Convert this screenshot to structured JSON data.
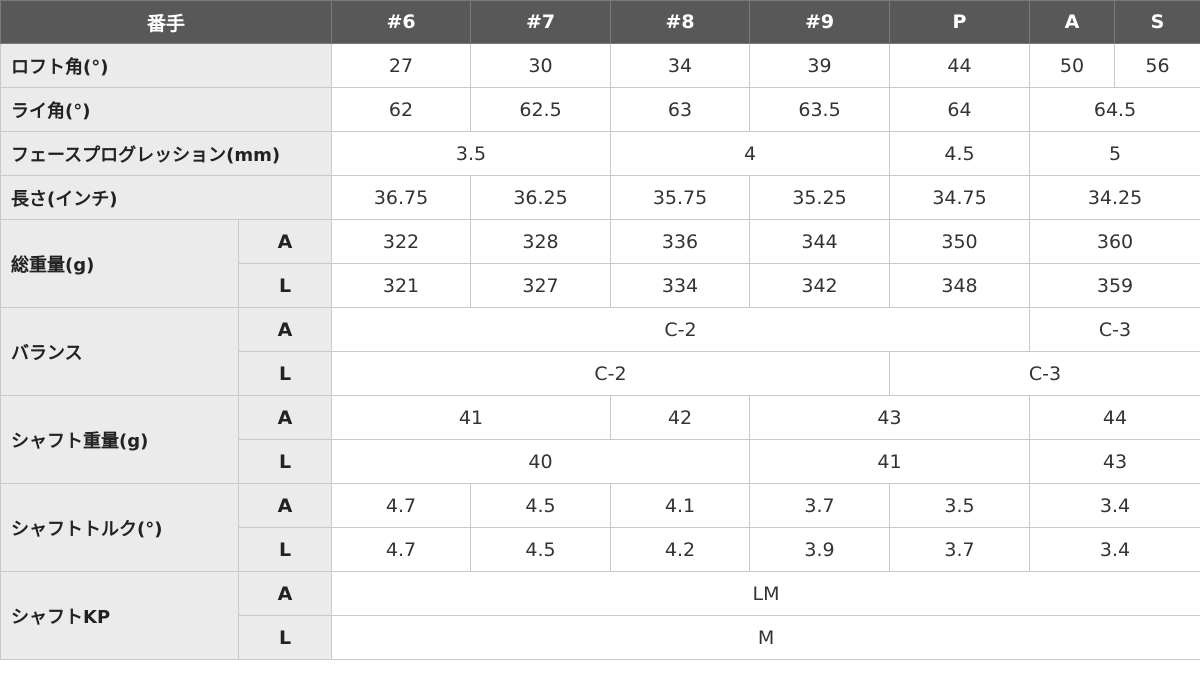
{
  "table": {
    "header": [
      "番手",
      "#6",
      "#7",
      "#8",
      "#9",
      "P",
      "A",
      "S"
    ],
    "rows": [
      {
        "label": "ロフト角(°)",
        "cells": [
          "27",
          "30",
          "34",
          "39",
          "44",
          "50",
          "56"
        ]
      },
      {
        "label": "ライ角(°)",
        "cells": [
          "62",
          "62.5",
          "63",
          "63.5",
          "64",
          "64.5"
        ]
      },
      {
        "label": "フェースプログレッション(mm)",
        "cells": [
          "3.5",
          "4",
          "4.5",
          "5"
        ]
      },
      {
        "label": "長さ(インチ)",
        "cells": [
          "36.75",
          "36.25",
          "35.75",
          "35.25",
          "34.75",
          "34.25"
        ]
      },
      {
        "label": "総重量(g)",
        "subrows": [
          {
            "key": "A",
            "cells": [
              "322",
              "328",
              "336",
              "344",
              "350",
              "360"
            ]
          },
          {
            "key": "L",
            "cells": [
              "321",
              "327",
              "334",
              "342",
              "348",
              "359"
            ]
          }
        ]
      },
      {
        "label": "バランス",
        "subrows": [
          {
            "key": "A",
            "cells": [
              "C-2",
              "C-3"
            ]
          },
          {
            "key": "L",
            "cells": [
              "C-2",
              "C-3"
            ]
          }
        ]
      },
      {
        "label": "シャフト重量(g)",
        "subrows": [
          {
            "key": "A",
            "cells": [
              "41",
              "42",
              "43",
              "44"
            ]
          },
          {
            "key": "L",
            "cells": [
              "40",
              "41",
              "43"
            ]
          }
        ]
      },
      {
        "label": "シャフトトルク(°)",
        "subrows": [
          {
            "key": "A",
            "cells": [
              "4.7",
              "4.5",
              "4.1",
              "3.7",
              "3.5",
              "3.4"
            ]
          },
          {
            "key": "L",
            "cells": [
              "4.7",
              "4.5",
              "4.2",
              "3.9",
              "3.7",
              "3.4"
            ]
          }
        ]
      },
      {
        "label": "シャフトKP",
        "subrows": [
          {
            "key": "A",
            "cells": [
              "LM"
            ]
          },
          {
            "key": "L",
            "cells": [
              "M"
            ]
          }
        ]
      }
    ]
  }
}
